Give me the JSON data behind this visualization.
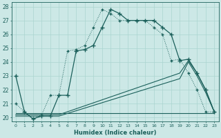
{
  "xlabel": "Humidex (Indice chaleur)",
  "xlim": [
    -0.5,
    23.5
  ],
  "ylim": [
    19.7,
    28.3
  ],
  "background_color": "#cce8e6",
  "line_color": "#1a5f5a",
  "grid_color": "#aad4d0",
  "series_main": {
    "x": [
      0,
      1,
      2,
      3,
      4,
      5,
      6,
      7,
      8,
      9,
      10,
      11,
      12,
      13,
      14,
      15,
      16,
      17,
      18,
      19,
      20,
      21,
      22,
      23
    ],
    "y": [
      23.0,
      20.4,
      19.9,
      20.1,
      20.1,
      21.6,
      21.6,
      24.8,
      24.9,
      25.2,
      26.5,
      27.8,
      27.5,
      27.0,
      27.0,
      27.0,
      27.0,
      26.5,
      26.0,
      24.1,
      24.2,
      23.2,
      22.0,
      20.4
    ]
  },
  "series_dotted": {
    "x": [
      0,
      1,
      2,
      3,
      4,
      5,
      6,
      7,
      8,
      9,
      10,
      11,
      12,
      13,
      14,
      15,
      16,
      17,
      18,
      19,
      20,
      21,
      22,
      23
    ],
    "y": [
      21.0,
      20.4,
      19.9,
      20.2,
      21.6,
      21.6,
      24.8,
      24.9,
      25.2,
      26.5,
      27.8,
      27.5,
      27.0,
      27.0,
      27.0,
      27.0,
      26.5,
      26.0,
      24.1,
      24.2,
      23.2,
      22.0,
      20.4,
      20.4
    ]
  },
  "series_diag1": {
    "x": [
      0,
      4,
      5,
      19,
      20,
      21,
      22,
      23
    ],
    "y": [
      20.2,
      20.2,
      20.2,
      23.2,
      24.1,
      23.2,
      22.0,
      20.4
    ]
  },
  "series_diag2": {
    "x": [
      0,
      4,
      5,
      19,
      20,
      21,
      22,
      23
    ],
    "y": [
      20.1,
      20.1,
      20.1,
      22.8,
      24.0,
      23.0,
      21.8,
      20.4
    ]
  },
  "series_flat": {
    "x": [
      0,
      19,
      23
    ],
    "y": [
      20.3,
      20.3,
      20.3
    ]
  },
  "ytick_values": [
    20,
    21,
    22,
    23,
    24,
    25,
    26,
    27,
    28
  ],
  "xtick_labels": [
    "0",
    "1",
    "2",
    "3",
    "4",
    "5",
    "6",
    "7",
    "8",
    "9",
    "10",
    "11",
    "12",
    "13",
    "14",
    "15",
    "16",
    "17",
    "18",
    "19",
    "20",
    "21",
    "22",
    "23"
  ]
}
